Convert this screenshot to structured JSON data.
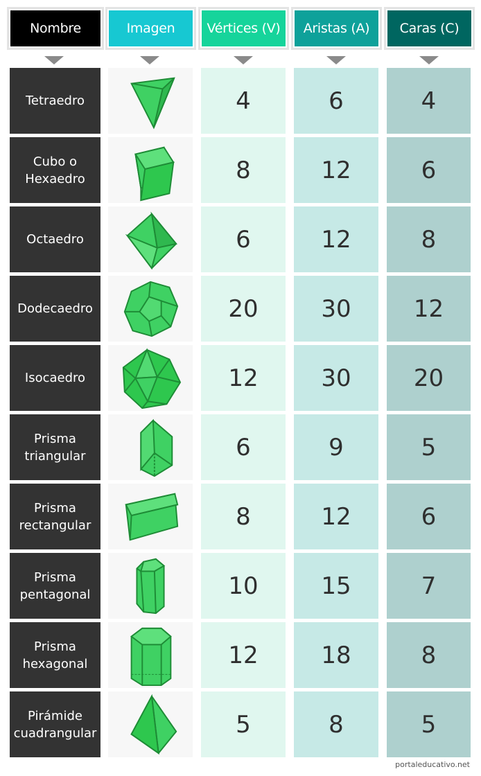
{
  "columns": {
    "nombre": "Nombre",
    "imagen": "Imagen",
    "vertices": "Vértices (V)",
    "aristas": "Aristas (A)",
    "caras": "Caras (C)"
  },
  "header_colors": {
    "nombre": "#000000",
    "imagen": "#17c8d2",
    "vertices": "#16d49b",
    "aristas": "#0ea19a",
    "caras": "#006660"
  },
  "rows": [
    {
      "name_1": "Tetraedro",
      "name_2": "",
      "icon": "tetrahedron-icon",
      "v": "4",
      "a": "6",
      "c": "4"
    },
    {
      "name_1": "Cubo o",
      "name_2": "Hexaedro",
      "icon": "cube-icon",
      "v": "8",
      "a": "12",
      "c": "6"
    },
    {
      "name_1": "Octaedro",
      "name_2": "",
      "icon": "octahedron-icon",
      "v": "6",
      "a": "12",
      "c": "8"
    },
    {
      "name_1": "Dodecaedro",
      "name_2": "",
      "icon": "dodecahedron-icon",
      "v": "20",
      "a": "30",
      "c": "12"
    },
    {
      "name_1": "Isocaedro",
      "name_2": "",
      "icon": "icosahedron-icon",
      "v": "12",
      "a": "30",
      "c": "20"
    },
    {
      "name_1": "Prisma",
      "name_2": "triangular",
      "icon": "triangular-prism-icon",
      "v": "6",
      "a": "9",
      "c": "5"
    },
    {
      "name_1": "Prisma",
      "name_2": "rectangular",
      "icon": "rectangular-prism-icon",
      "v": "8",
      "a": "12",
      "c": "6"
    },
    {
      "name_1": "Prisma",
      "name_2": "pentagonal",
      "icon": "pentagonal-prism-icon",
      "v": "10",
      "a": "15",
      "c": "7"
    },
    {
      "name_1": "Prisma",
      "name_2": "hexagonal",
      "icon": "hexagonal-prism-icon",
      "v": "12",
      "a": "18",
      "c": "8"
    },
    {
      "name_1": "Pirámide",
      "name_2": "cuadrangular",
      "icon": "square-pyramid-icon",
      "v": "5",
      "a": "8",
      "c": "5"
    }
  ],
  "footer": "portaleducativo.net"
}
